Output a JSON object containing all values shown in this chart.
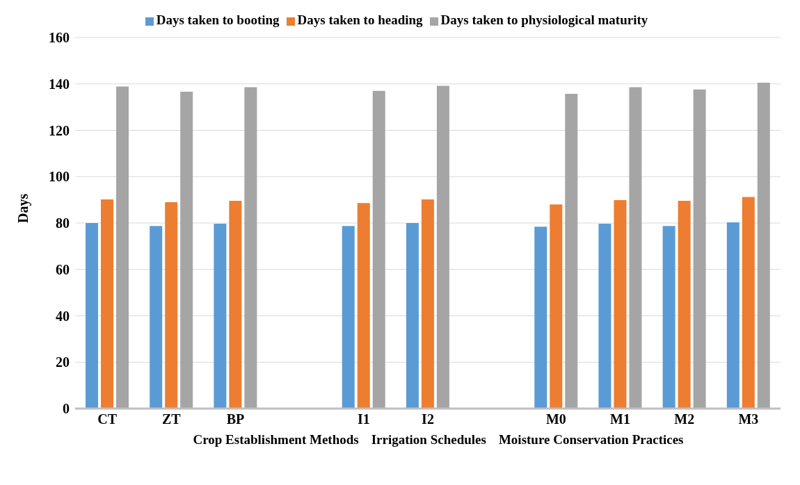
{
  "chart_data": {
    "type": "bar",
    "ylabel": "Days",
    "categories": [
      "CT",
      "ZT",
      "BP",
      null,
      "I1",
      "I2",
      null,
      "M0",
      "M1",
      "M2",
      "M3"
    ],
    "series": [
      {
        "name": "Days taken to booting",
        "color": "#5b9bd5",
        "values": [
          80,
          78.7,
          79.7,
          null,
          78.7,
          80,
          null,
          78.4,
          79.7,
          78.7,
          80.3
        ]
      },
      {
        "name": "Days taken to heading",
        "color": "#ed7d31",
        "values": [
          90.2,
          89,
          89.6,
          null,
          88.6,
          90.2,
          null,
          88,
          89.9,
          89.6,
          91.2
        ]
      },
      {
        "name": "Days taken to physiological maturity",
        "color": "#a5a5a5",
        "values": [
          138.9,
          136.6,
          138.6,
          null,
          137,
          139.2,
          null,
          135.7,
          138.6,
          137.6,
          140.5
        ]
      }
    ],
    "ylim": [
      0,
      160
    ],
    "yticks": [
      0,
      20,
      40,
      60,
      80,
      100,
      120,
      140,
      160
    ],
    "grid": "y",
    "legend": "top",
    "annotations": [
      "Crop Establishment Methods",
      "Irrigation Schedules",
      "Moisture Conservation Practices"
    ]
  }
}
